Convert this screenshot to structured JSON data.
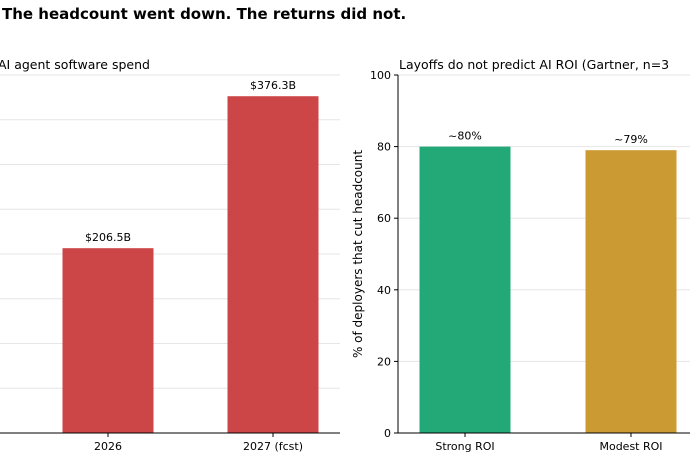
{
  "title": "The headcount went down. The returns did not.",
  "chart_data": [
    {
      "type": "bar",
      "title": "AI agent software spend",
      "categories": [
        "2026",
        "2027 (fcst)"
      ],
      "values": [
        206.5,
        376.3
      ],
      "value_labels": [
        "$206.5B",
        "$376.3B"
      ],
      "ylim": [
        0,
        400
      ],
      "ylabel": "",
      "xlabel": "",
      "colors": [
        "#cc4647",
        "#cc4647"
      ],
      "grid": true
    },
    {
      "type": "bar",
      "title": "Layoffs do not predict AI ROI (Gartner, n=3",
      "categories": [
        "Strong ROI",
        "Modest ROI"
      ],
      "values": [
        80,
        79
      ],
      "value_labels": [
        "~80%",
        "~79%"
      ],
      "ylim": [
        0,
        100
      ],
      "yticks": [
        "0",
        "20",
        "40",
        "60",
        "80",
        "100"
      ],
      "ylabel": "% of deployers that cut headcount",
      "xlabel": "",
      "colors": [
        "#22a977",
        "#cc9a33"
      ],
      "grid": true
    }
  ]
}
